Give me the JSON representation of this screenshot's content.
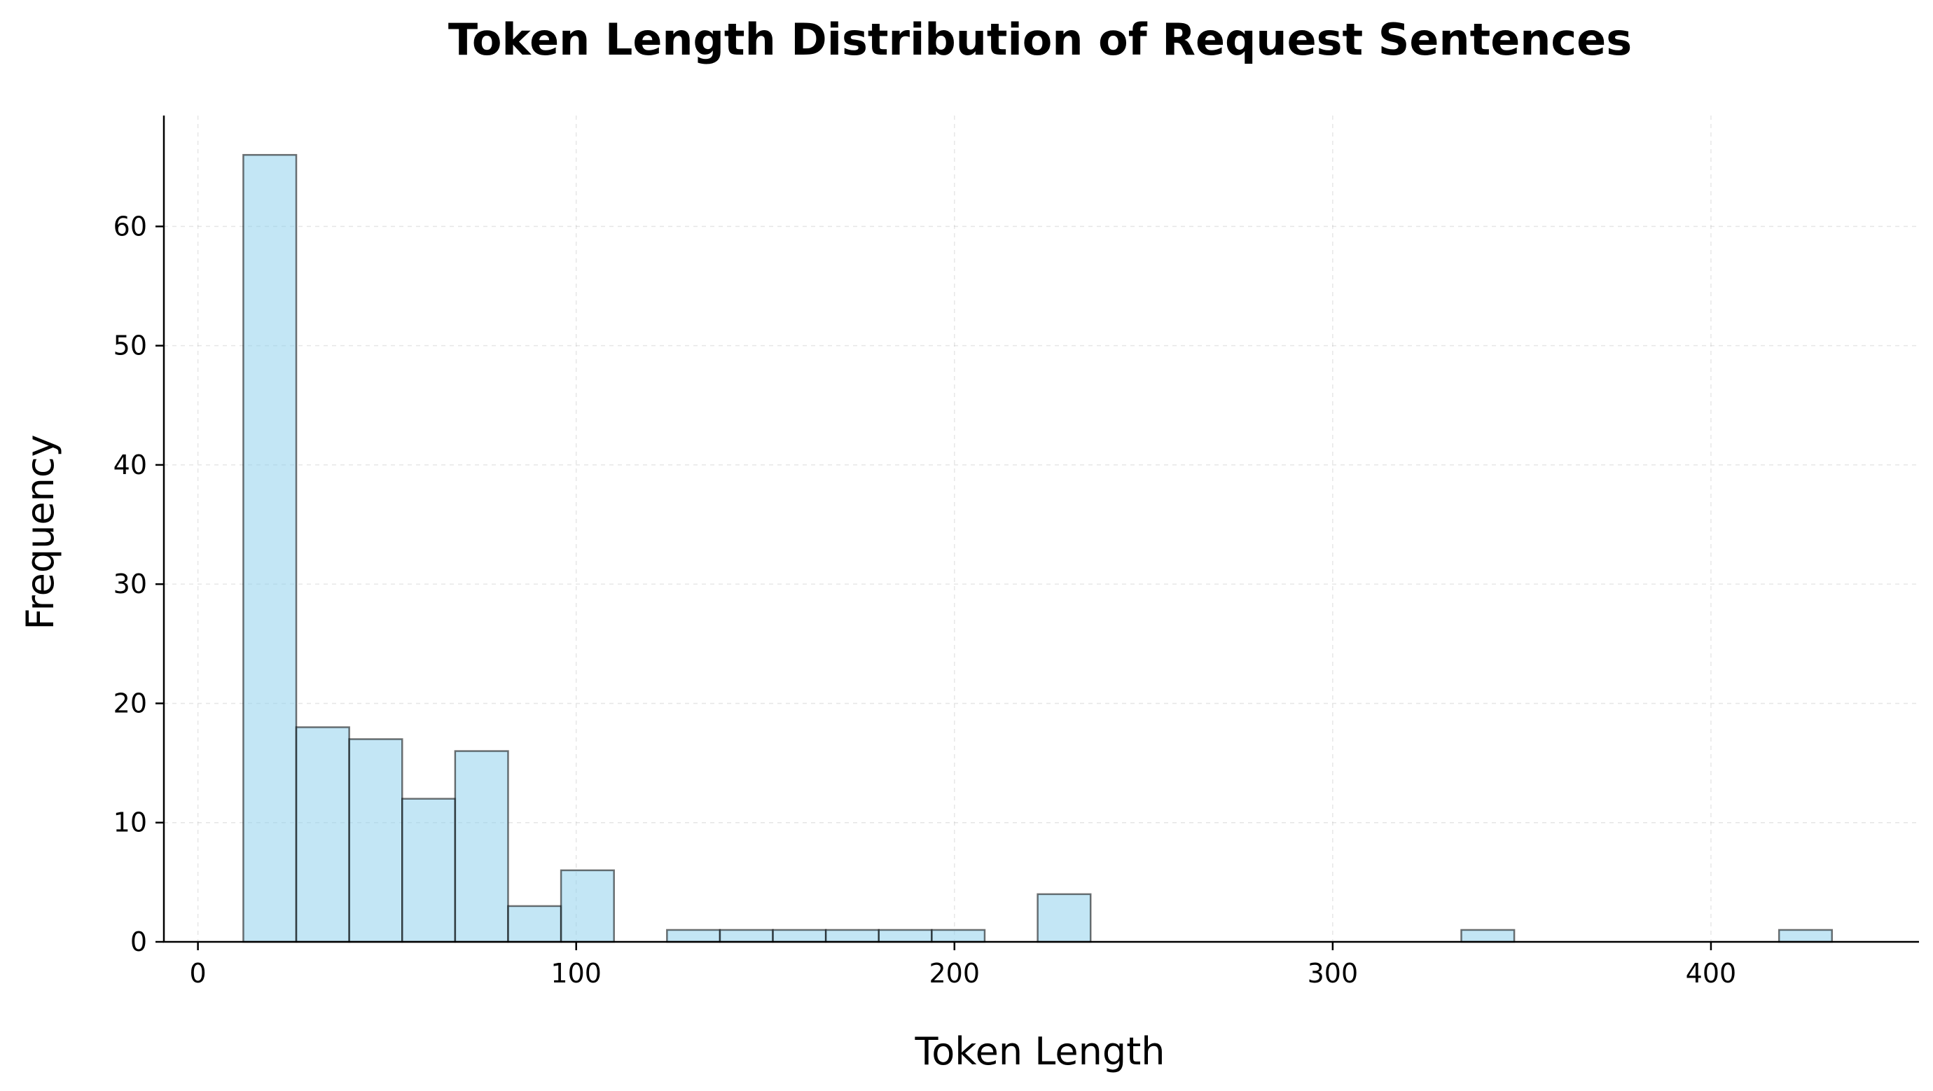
{
  "chart_data": {
    "type": "bar",
    "title": "Token Length Distribution of Request Sentences",
    "xlabel": "Token Length",
    "ylabel": "Frequency",
    "xlim": [
      -9,
      455
    ],
    "ylim": [
      0,
      69.3
    ],
    "xticks": [
      0,
      100,
      200,
      300,
      400
    ],
    "yticks": [
      0,
      10,
      20,
      30,
      40,
      50,
      60
    ],
    "grid": true,
    "bar_color": "#87ceeb",
    "edge_color": "#000000",
    "bin_edges": [
      12,
      26,
      40,
      54,
      68,
      82,
      96,
      110,
      124,
      138,
      152,
      166,
      180,
      194,
      208,
      222,
      236,
      250,
      264,
      278,
      292,
      306,
      320,
      334,
      348,
      362,
      376,
      390,
      404,
      418,
      432
    ],
    "counts": [
      66,
      18,
      17,
      12,
      16,
      3,
      6,
      0,
      1,
      1,
      1,
      1,
      1,
      1,
      0,
      4,
      0,
      0,
      0,
      0,
      0,
      0,
      0,
      1,
      0,
      0,
      0,
      0,
      0,
      1
    ]
  }
}
